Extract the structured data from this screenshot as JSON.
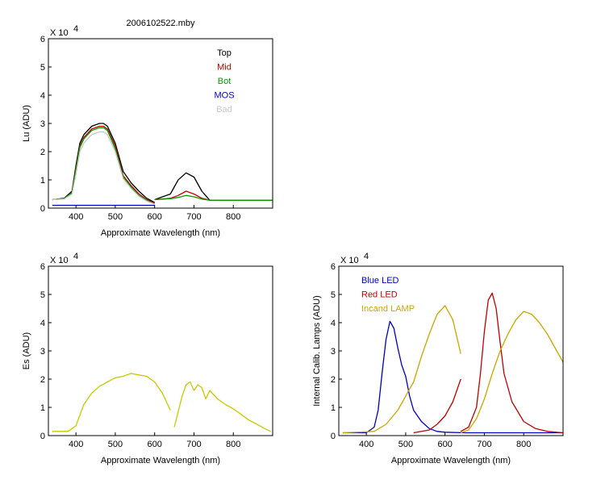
{
  "chart_data": [
    {
      "type": "line",
      "title": "2006102522.mby",
      "xlabel": "Approximate Wavelength (nm)",
      "ylabel": "Lu (ADU)",
      "y_multiplier": "X 10",
      "y_exponent": "4",
      "xlim": [
        330,
        900
      ],
      "ylim": [
        0,
        6
      ],
      "xticks": [
        "400",
        "500",
        "600",
        "700",
        "800"
      ],
      "yticks": [
        "0",
        "1",
        "2",
        "3",
        "4",
        "5",
        "6"
      ],
      "legend_position": "top-right",
      "series": [
        {
          "name": "Top",
          "color": "#000000",
          "segments": [
            {
              "x": [
                340,
                370,
                390,
                400,
                410,
                420,
                440,
                460,
                470,
                480,
                500,
                520,
                540,
                560,
                580,
                600
              ],
              "y": [
                0.3,
                0.35,
                0.6,
                1.5,
                2.3,
                2.6,
                2.9,
                3.0,
                3.0,
                2.9,
                2.3,
                1.3,
                0.9,
                0.6,
                0.35,
                0.2
              ]
            },
            {
              "x": [
                600,
                640,
                660,
                680,
                700,
                720,
                740,
                800,
                900
              ],
              "y": [
                0.3,
                0.5,
                1.0,
                1.25,
                1.1,
                0.6,
                0.28,
                0.28,
                0.28
              ]
            }
          ]
        },
        {
          "name": "Mid",
          "color": "#c00000",
          "segments": [
            {
              "x": [
                340,
                370,
                390,
                400,
                410,
                420,
                440,
                460,
                470,
                480,
                500,
                520,
                540,
                560,
                580,
                600
              ],
              "y": [
                0.3,
                0.33,
                0.55,
                1.4,
                2.2,
                2.5,
                2.8,
                2.9,
                2.9,
                2.8,
                2.2,
                1.15,
                0.8,
                0.5,
                0.3,
                0.18
              ]
            },
            {
              "x": [
                600,
                640,
                660,
                680,
                700,
                720,
                740,
                800,
                900
              ],
              "y": [
                0.3,
                0.35,
                0.45,
                0.6,
                0.5,
                0.35,
                0.28,
                0.28,
                0.28
              ]
            }
          ]
        },
        {
          "name": "Bot",
          "color": "#00a000",
          "segments": [
            {
              "x": [
                340,
                370,
                390,
                400,
                410,
                420,
                440,
                460,
                470,
                480,
                500,
                520,
                540,
                560,
                580,
                600
              ],
              "y": [
                0.3,
                0.33,
                0.55,
                1.35,
                2.15,
                2.45,
                2.75,
                2.85,
                2.85,
                2.75,
                2.1,
                1.1,
                0.75,
                0.45,
                0.28,
                0.15
              ]
            },
            {
              "x": [
                600,
                640,
                660,
                680,
                700,
                720,
                740,
                800,
                900
              ],
              "y": [
                0.3,
                0.33,
                0.38,
                0.45,
                0.4,
                0.32,
                0.28,
                0.28,
                0.28
              ]
            }
          ]
        },
        {
          "name": "MOS",
          "color": "#0000c0",
          "segments": [
            {
              "x": [
                340,
                600
              ],
              "y": [
                0.1,
                0.1
              ]
            }
          ]
        },
        {
          "name": "Bad",
          "color": "#c8c8c8",
          "segments": [
            {
              "x": [
                340,
                370,
                390,
                400,
                410,
                420,
                440,
                460,
                470,
                480,
                500,
                520,
                540,
                560,
                580,
                600
              ],
              "y": [
                0.3,
                0.32,
                0.5,
                1.2,
                2.0,
                2.3,
                2.6,
                2.7,
                2.7,
                2.6,
                2.0,
                1.05,
                0.7,
                0.42,
                0.25,
                0.14
              ]
            }
          ]
        }
      ]
    },
    {
      "type": "line",
      "title": "",
      "xlabel": "Approximate Wavelength (nm)",
      "ylabel": "Es (ADU)",
      "y_multiplier": "X 10",
      "y_exponent": "4",
      "xlim": [
        330,
        900
      ],
      "ylim": [
        0,
        6
      ],
      "xticks": [
        "400",
        "500",
        "600",
        "700",
        "800"
      ],
      "yticks": [
        "0",
        "1",
        "2",
        "3",
        "4",
        "5",
        "6"
      ],
      "series": [
        {
          "name": "",
          "color": "#c8c800",
          "segments": [
            {
              "x": [
                340,
                380,
                400,
                420,
                440,
                460,
                480,
                500,
                520,
                540,
                560,
                580,
                600,
                620,
                640
              ],
              "y": [
                0.15,
                0.15,
                0.35,
                1.1,
                1.5,
                1.75,
                1.9,
                2.05,
                2.1,
                2.2,
                2.15,
                2.1,
                1.9,
                1.5,
                0.9
              ]
            },
            {
              "x": [
                650,
                670,
                680,
                690,
                700,
                710,
                720,
                730,
                740,
                760,
                780,
                800,
                820,
                840,
                860,
                880,
                895
              ],
              "y": [
                0.3,
                1.4,
                1.8,
                1.9,
                1.6,
                1.8,
                1.7,
                1.3,
                1.6,
                1.3,
                1.1,
                0.95,
                0.75,
                0.55,
                0.4,
                0.25,
                0.15
              ]
            }
          ]
        }
      ]
    },
    {
      "type": "line",
      "title": "",
      "xlabel": "Approximate Wavelength (nm)",
      "ylabel": "Internal Calib. Lamps (ADU)",
      "y_multiplier": "X 10",
      "y_exponent": "4",
      "xlim": [
        330,
        900
      ],
      "ylim": [
        0,
        6
      ],
      "xticks": [
        "400",
        "500",
        "600",
        "700",
        "800"
      ],
      "yticks": [
        "0",
        "1",
        "2",
        "3",
        "4",
        "5",
        "6"
      ],
      "legend_position": "top-left",
      "series": [
        {
          "name": "Blue LED",
          "color": "#0000c0",
          "segments": [
            {
              "x": [
                340,
                400,
                420,
                430,
                440,
                450,
                460,
                470,
                480,
                490,
                500,
                510,
                520,
                540,
                560,
                580,
                600,
                650,
                700,
                750,
                800,
                900
              ],
              "y": [
                0.1,
                0.1,
                0.3,
                0.9,
                2.2,
                3.4,
                4.05,
                3.8,
                3.1,
                2.5,
                2.1,
                1.4,
                0.9,
                0.5,
                0.25,
                0.15,
                0.12,
                0.1,
                0.1,
                0.1,
                0.1,
                0.1
              ]
            }
          ]
        },
        {
          "name": "Red LED",
          "color": "#c00000",
          "segments": [
            {
              "x": [
                520,
                560,
                580,
                600,
                620,
                640
              ],
              "y": [
                0.1,
                0.2,
                0.4,
                0.7,
                1.2,
                2.0
              ]
            },
            {
              "x": [
                640,
                660,
                680,
                690,
                700,
                710,
                720,
                730,
                740,
                750,
                770,
                800,
                830,
                860,
                900
              ],
              "y": [
                0.15,
                0.3,
                1.0,
                2.2,
                3.7,
                4.8,
                5.05,
                4.5,
                3.3,
                2.2,
                1.2,
                0.5,
                0.25,
                0.15,
                0.1
              ]
            }
          ]
        },
        {
          "name": "Incand LAMP",
          "color": "#c8a800",
          "segments": [
            {
              "x": [
                340,
                420,
                450,
                480,
                500,
                520,
                540,
                560,
                580,
                600,
                620,
                640
              ],
              "y": [
                0.1,
                0.15,
                0.4,
                0.9,
                1.4,
                1.9,
                2.8,
                3.6,
                4.3,
                4.6,
                4.1,
                2.9
              ]
            },
            {
              "x": [
                640,
                660,
                680,
                700,
                720,
                740,
                760,
                780,
                800,
                820,
                840,
                860,
                880,
                900
              ],
              "y": [
                0.1,
                0.2,
                0.6,
                1.3,
                2.2,
                3.0,
                3.6,
                4.1,
                4.4,
                4.3,
                4.0,
                3.6,
                3.1,
                2.6
              ]
            }
          ]
        }
      ]
    }
  ]
}
